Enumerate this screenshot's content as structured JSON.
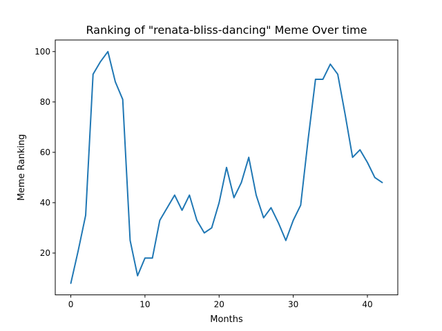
{
  "chart_data": {
    "type": "line",
    "title": "Ranking of \"renata-bliss-dancing\" Meme Over time",
    "xlabel": "Months",
    "ylabel": "Meme Ranking",
    "xlim": [
      -2.1,
      44.1
    ],
    "ylim": [
      3.4,
      104.6
    ],
    "xticks": [
      0,
      10,
      20,
      30,
      40
    ],
    "yticks": [
      20,
      40,
      60,
      80,
      100
    ],
    "grid": false,
    "color": "#1f77b4",
    "x": [
      0,
      1,
      2,
      3,
      4,
      5,
      6,
      7,
      8,
      9,
      10,
      11,
      12,
      13,
      14,
      15,
      16,
      17,
      18,
      19,
      20,
      21,
      22,
      23,
      24,
      25,
      26,
      27,
      28,
      29,
      30,
      31,
      32,
      33,
      34,
      35,
      36,
      37,
      38,
      39,
      40,
      41,
      42
    ],
    "y": [
      8,
      21,
      35,
      91,
      96,
      100,
      88,
      81,
      25,
      11,
      18,
      18,
      33,
      38,
      43,
      37,
      43,
      33,
      28,
      30,
      40,
      54,
      42,
      48,
      58,
      43,
      34,
      38,
      32,
      25,
      33,
      39,
      65,
      89,
      89,
      95,
      91,
      75,
      58,
      61,
      56,
      50,
      48
    ]
  }
}
